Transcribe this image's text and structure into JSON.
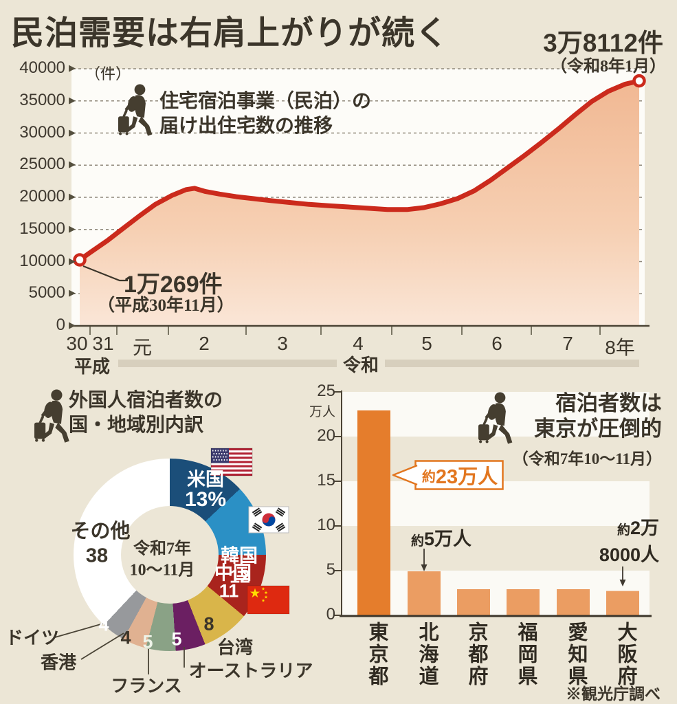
{
  "header": {
    "title": "民泊需要は右肩上がりが続く"
  },
  "chart_data": [
    {
      "type": "line",
      "title_lines": [
        "住宅宿泊事業（民泊）の",
        "届け出住宅数の推移"
      ],
      "unit_label": "（件）",
      "ylim": [
        0,
        40000
      ],
      "y_ticks": [
        "40000",
        "35000",
        "30000",
        "25000",
        "20000",
        "15000",
        "10000",
        "5000",
        "0"
      ],
      "x_ticks": [
        "30",
        "31",
        "元",
        "2",
        "3",
        "4",
        "5",
        "6",
        "7",
        "8年"
      ],
      "eras": {
        "heisei": "平成",
        "reiwa": "令和"
      },
      "start_point": {
        "label": "1万269件",
        "sublabel": "（平成30年11月）",
        "value": 10269
      },
      "end_point": {
        "label": "3万8112件",
        "sublabel": "（令和8年1月）",
        "value": 38112
      },
      "line_color": "#cb2a1c",
      "series": [
        [
          0,
          10269
        ],
        [
          0.02,
          11500
        ],
        [
          0.05,
          13300
        ],
        [
          0.075,
          15000
        ],
        [
          0.105,
          17000
        ],
        [
          0.135,
          18900
        ],
        [
          0.165,
          20300
        ],
        [
          0.19,
          21200
        ],
        [
          0.205,
          21400
        ],
        [
          0.225,
          20900
        ],
        [
          0.25,
          20500
        ],
        [
          0.28,
          20100
        ],
        [
          0.31,
          19800
        ],
        [
          0.34,
          19500
        ],
        [
          0.375,
          19200
        ],
        [
          0.41,
          18900
        ],
        [
          0.445,
          18700
        ],
        [
          0.48,
          18500
        ],
        [
          0.515,
          18300
        ],
        [
          0.55,
          18100
        ],
        [
          0.585,
          18100
        ],
        [
          0.615,
          18400
        ],
        [
          0.645,
          19000
        ],
        [
          0.675,
          19800
        ],
        [
          0.705,
          21000
        ],
        [
          0.735,
          22700
        ],
        [
          0.765,
          24600
        ],
        [
          0.795,
          26500
        ],
        [
          0.825,
          28500
        ],
        [
          0.855,
          30600
        ],
        [
          0.885,
          32800
        ],
        [
          0.915,
          34900
        ],
        [
          0.945,
          36500
        ],
        [
          0.975,
          37600
        ],
        [
          1,
          38112
        ]
      ]
    },
    {
      "type": "pie",
      "title_lines": [
        "外国人宿泊者数の",
        "国・地域別内訳"
      ],
      "center_label": [
        "令和7年",
        "10〜11月"
      ],
      "slices": [
        {
          "label": "米国",
          "value": 13,
          "display": "13%",
          "color": "#1b4e79"
        },
        {
          "label": "韓国",
          "value": 12,
          "display": "12",
          "color": "#2b90c5"
        },
        {
          "label": "中国",
          "value": 11,
          "display": "11",
          "color": "#a9241d"
        },
        {
          "label": "台湾",
          "value": 8,
          "display": "8",
          "color": "#d9b54a"
        },
        {
          "label": "オーストラリア",
          "value": 5,
          "display": "5",
          "color": "#6b1f62"
        },
        {
          "label": "フランス",
          "value": 5,
          "display": "5",
          "color": "#8aa286"
        },
        {
          "label": "香港",
          "value": 4,
          "display": "4",
          "color": "#e0b191"
        },
        {
          "label": "ドイツ",
          "value": 4,
          "display": "4",
          "color": "#97999c"
        },
        {
          "label": "その他",
          "value": 38,
          "display": "38",
          "color": "#ffffff"
        }
      ]
    },
    {
      "type": "bar",
      "title_lines": [
        "宿泊者数は",
        "東京が圧倒的"
      ],
      "subtitle": "（令和7年10〜11月）",
      "y_ticks": [
        "25",
        "20",
        "15",
        "10",
        "5",
        "0"
      ],
      "y_unit": "万人",
      "ylim": [
        0,
        25
      ],
      "categories": [
        "東京都",
        "北海道",
        "京都府",
        "福岡県",
        "愛知県",
        "大阪府"
      ],
      "values": [
        23,
        5,
        3,
        3,
        3,
        2.8
      ],
      "bar_colors": {
        "highlight": "#e57d2c",
        "normal": "#eb9d62"
      },
      "annotations": {
        "tokyo_prefix": "約",
        "tokyo_main": "23万人",
        "hokkaido_prefix": "約",
        "hokkaido_main": "5万人",
        "osaka_prefix": "約",
        "osaka_main1": "2万",
        "osaka_main2": "8000人"
      },
      "source": "※観光庁調べ"
    }
  ]
}
